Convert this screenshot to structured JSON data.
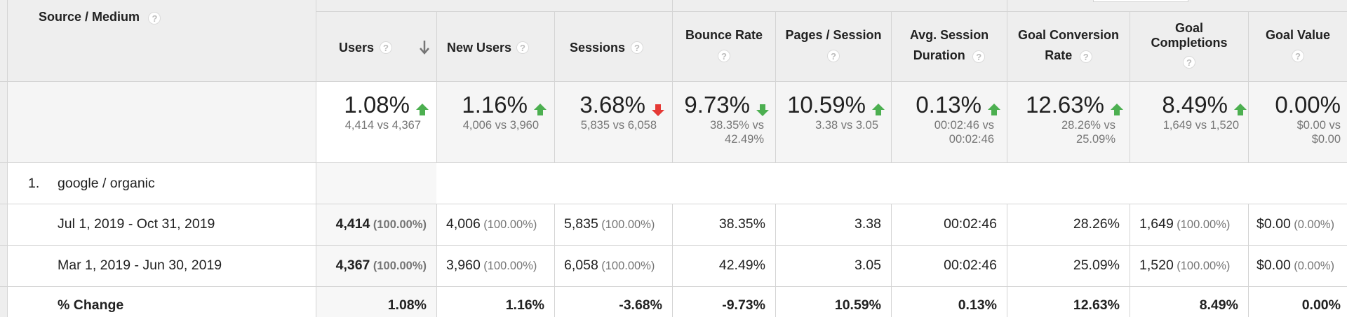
{
  "header": {
    "dimension_label": "Source / Medium",
    "help_glyph": "?",
    "columns": {
      "users": "Users",
      "new_users": "New Users",
      "sessions": "Sessions",
      "bounce_rate": "Bounce Rate",
      "pages_session": "Pages / Session",
      "avg_session_line1": "Avg. Session",
      "avg_session_line2": "Duration",
      "goal_conv_line1": "Goal Conversion",
      "goal_conv_line2": "Rate",
      "goal_completions_line1": "Goal",
      "goal_completions_line2": "Completions",
      "goal_value": "Goal Value"
    }
  },
  "summary": {
    "users": {
      "change": "1.08%",
      "detail1": "4,414 vs 4,367",
      "direction": "up"
    },
    "new_users": {
      "change": "1.16%",
      "detail1": "4,006 vs 3,960",
      "direction": "up"
    },
    "sessions": {
      "change": "3.68%",
      "detail1": "5,835 vs 6,058",
      "direction": "down"
    },
    "bounce_rate": {
      "change": "9.73%",
      "detail1": "38.35% vs",
      "detail2": "42.49%",
      "direction": "down"
    },
    "pages_session": {
      "change": "10.59%",
      "detail1": "3.38 vs 3.05",
      "direction": "up"
    },
    "avg_session": {
      "change": "0.13%",
      "detail1": "00:02:46 vs",
      "detail2": "00:02:46",
      "direction": "up"
    },
    "goal_conv": {
      "change": "12.63%",
      "detail1": "28.26% vs",
      "detail2": "25.09%",
      "direction": "up"
    },
    "goal_completions": {
      "change": "8.49%",
      "detail1": "1,649 vs 1,520",
      "direction": "up"
    },
    "goal_value": {
      "change": "0.00%",
      "detail1": "$0.00 vs",
      "detail2": "$0.00"
    }
  },
  "colors": {
    "up": "#4caf50",
    "down": "#e53935"
  },
  "group": {
    "index": "1.",
    "label": "google / organic"
  },
  "rows": [
    {
      "label": "Jul 1, 2019 - Oct 31, 2019",
      "users": "4,414",
      "users_pct": "(100.00%)",
      "new_users": "4,006",
      "new_users_pct": "(100.00%)",
      "sessions": "5,835",
      "sessions_pct": "(100.00%)",
      "bounce_rate": "38.35%",
      "pages_session": "3.38",
      "avg_session": "00:02:46",
      "goal_conv": "28.26%",
      "goal_completions": "1,649",
      "goal_completions_pct": "(100.00%)",
      "goal_value": "$0.00",
      "goal_value_pct": "(0.00%)"
    },
    {
      "label": "Mar 1, 2019 - Jun 30, 2019",
      "users": "4,367",
      "users_pct": "(100.00%)",
      "new_users": "3,960",
      "new_users_pct": "(100.00%)",
      "sessions": "6,058",
      "sessions_pct": "(100.00%)",
      "bounce_rate": "42.49%",
      "pages_session": "3.05",
      "avg_session": "00:02:46",
      "goal_conv": "25.09%",
      "goal_completions": "1,520",
      "goal_completions_pct": "(100.00%)",
      "goal_value": "$0.00",
      "goal_value_pct": "(0.00%)"
    }
  ],
  "change_row": {
    "label": "% Change",
    "users": "1.08%",
    "new_users": "1.16%",
    "sessions": "-3.68%",
    "bounce_rate": "-9.73%",
    "pages_session": "10.59%",
    "avg_session": "0.13%",
    "goal_conv": "12.63%",
    "goal_completions": "8.49%",
    "goal_value": "0.00%"
  }
}
